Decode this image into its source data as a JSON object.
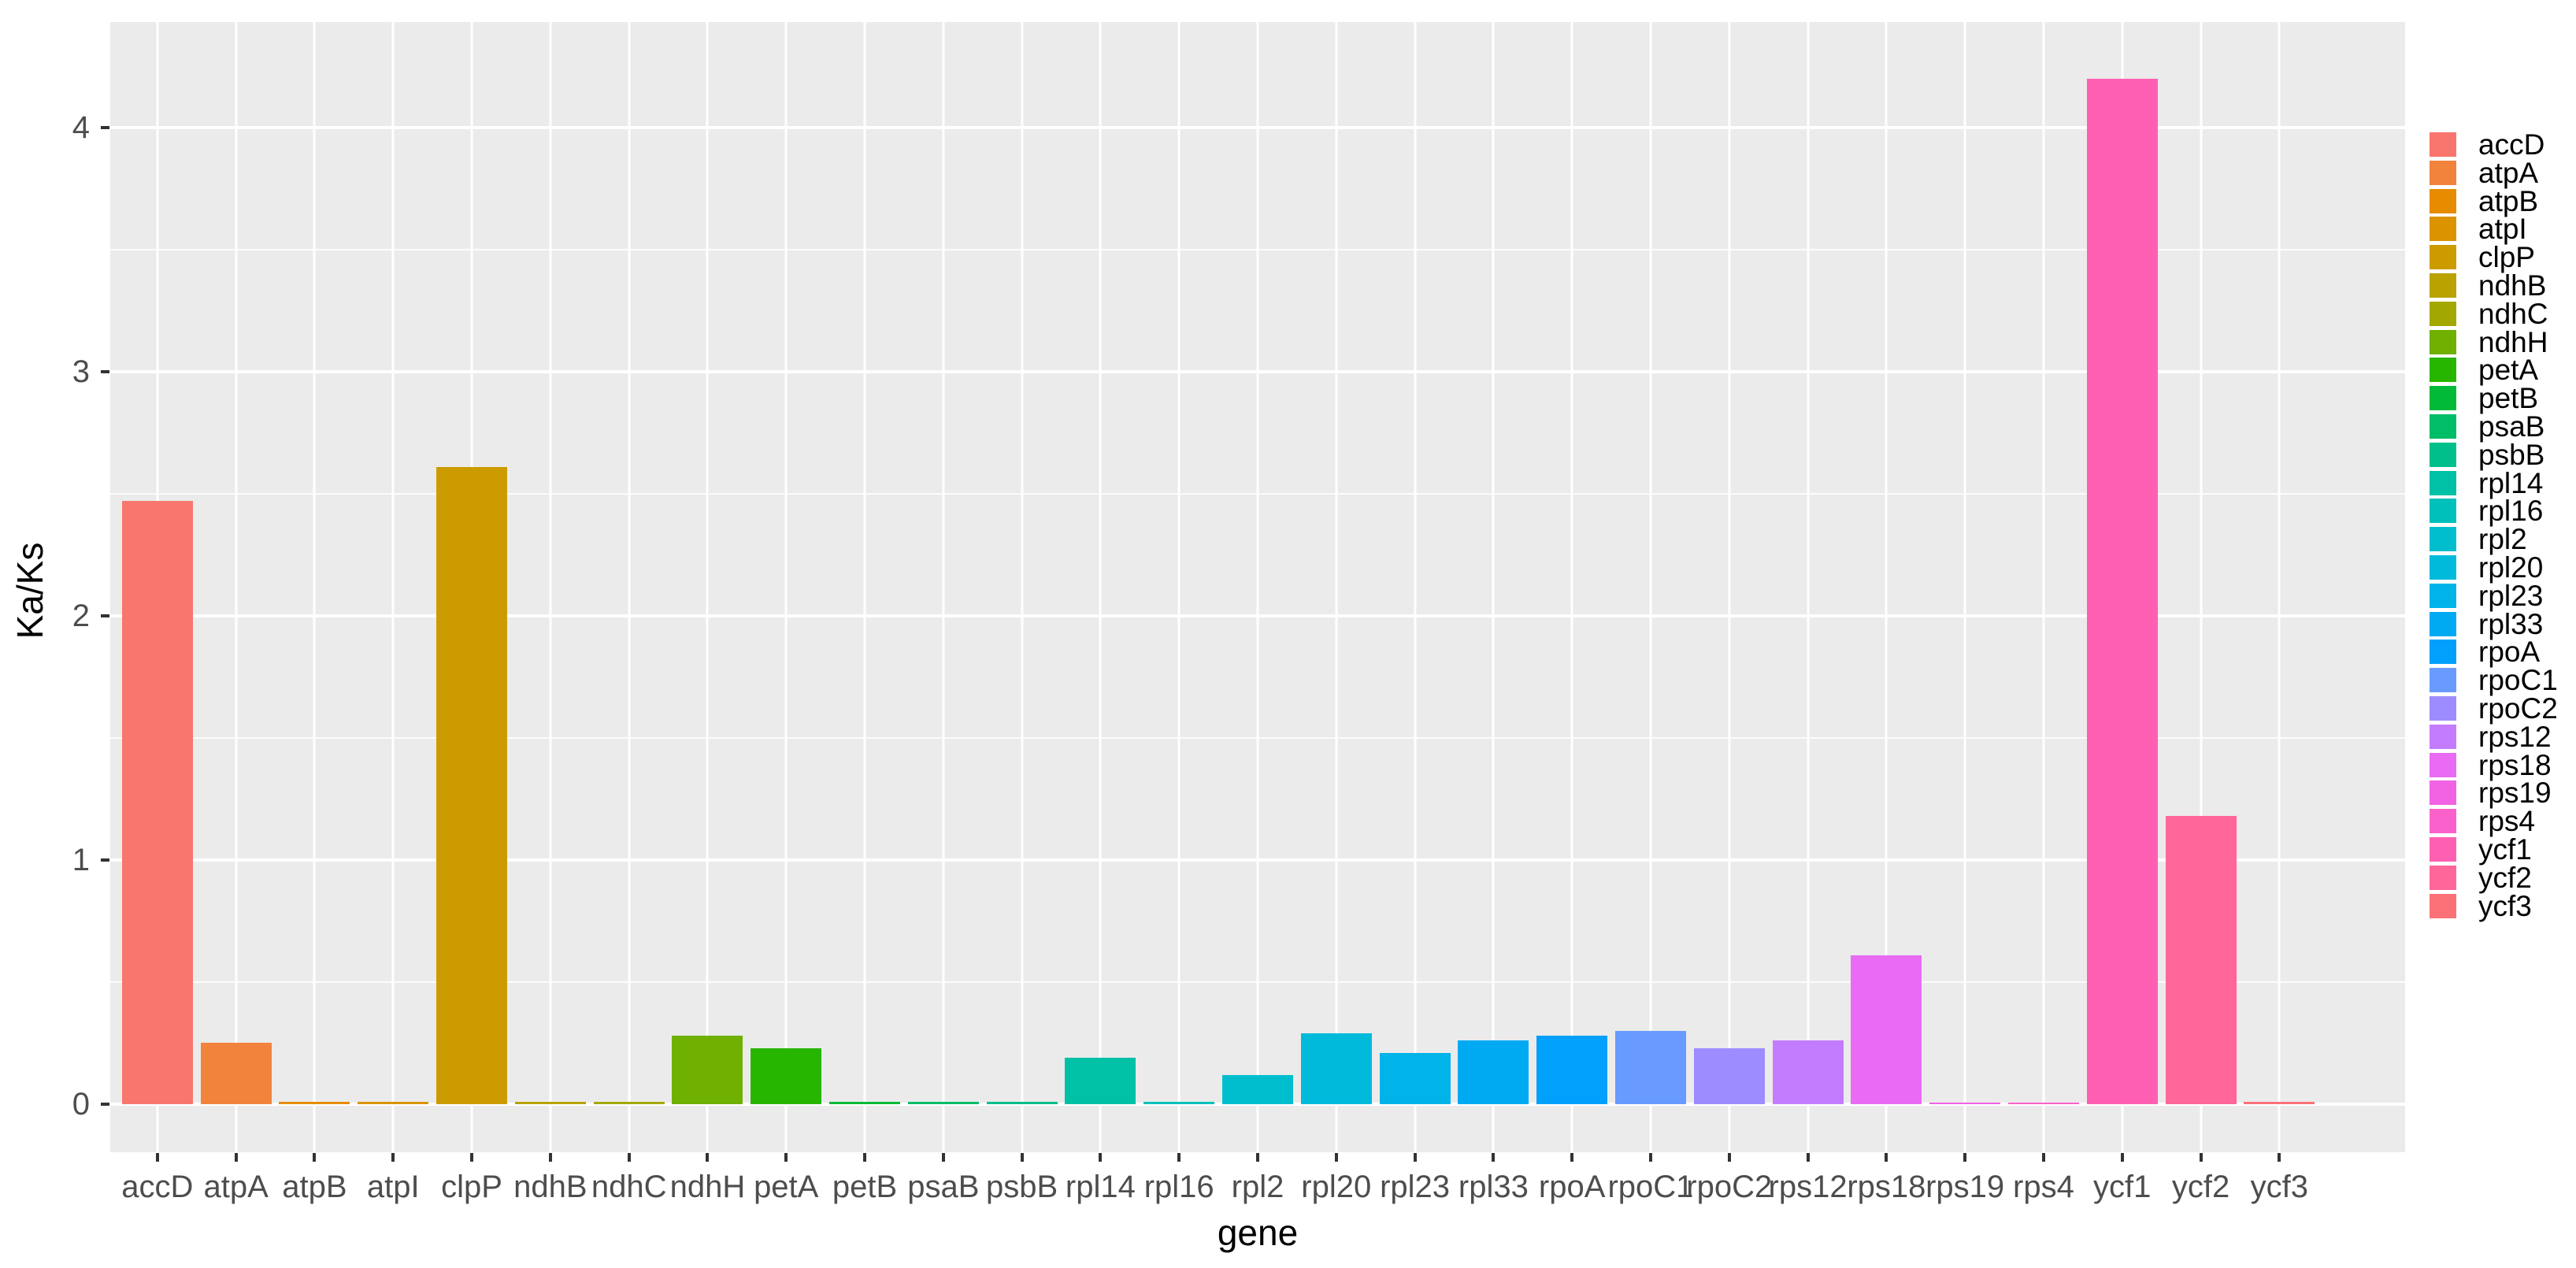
{
  "figure": {
    "y_axis_title": "Ka/Ks",
    "x_axis_title": "gene"
  },
  "chart_data": {
    "type": "bar",
    "title": "",
    "xlabel": "gene",
    "ylabel": "Ka/Ks",
    "categories": [
      "accD",
      "atpA",
      "atpB",
      "atpI",
      "clpP",
      "ndhB",
      "ndhC",
      "ndhH",
      "petA",
      "petB",
      "psaB",
      "psbB",
      "rpl14",
      "rpl16",
      "rpl2",
      "rpl20",
      "rpl23",
      "rpl33",
      "rpoA",
      "rpoC1",
      "rpoC2",
      "rps12",
      "rps18",
      "rps19",
      "rps4",
      "ycf1",
      "ycf2",
      "ycf3"
    ],
    "values": [
      2.47,
      0.25,
      0.01,
      0.01,
      2.61,
      0.01,
      0.01,
      0.28,
      0.23,
      0.01,
      0.01,
      0.01,
      0.19,
      0.01,
      0.12,
      0.29,
      0.21,
      0.26,
      0.28,
      0.3,
      0.23,
      0.26,
      0.61,
      0.005,
      0.005,
      4.2,
      1.18,
      0.01
    ],
    "colors": [
      "#F8766D",
      "#F1833D",
      "#E78C00",
      "#DB9400",
      "#CC9B00",
      "#BAA200",
      "#A3A800",
      "#6FB000",
      "#27B600",
      "#00BA38",
      "#00BD68",
      "#00BF8B",
      "#00C0A5",
      "#00C0BB",
      "#00BECE",
      "#00BADC",
      "#00B3E9",
      "#00AAF2",
      "#00A0FC",
      "#699AFF",
      "#9D8CFF",
      "#C47CFF",
      "#E96BF3",
      "#F163E2",
      "#FB61CB",
      "#FF5FB2",
      "#FF6699",
      "#FC7178"
    ],
    "legend_entries": [
      "accD",
      "atpA",
      "atpB",
      "atpI",
      "clpP",
      "ndhB",
      "ndhC",
      "ndhH",
      "petA",
      "petB",
      "psaB",
      "psbB",
      "rpl14",
      "rpl16",
      "rpl2",
      "rpl20",
      "rpl23",
      "rpl33",
      "rpoA",
      "rpoC1",
      "rpoC2",
      "rps12",
      "rps18",
      "rps19",
      "rps4",
      "ycf1",
      "ycf2",
      "ycf3"
    ],
    "legend_position": "right",
    "y_tick_labels": [
      "0",
      "1",
      "2",
      "3",
      "4"
    ],
    "y_ticks": [
      0,
      1,
      2,
      3,
      4
    ],
    "y_minor_ticks": [
      0.5,
      1.5,
      2.5,
      3.5
    ],
    "ylim": [
      -0.2,
      4.42
    ],
    "grid": true,
    "panel_background": "#EBEBEB",
    "grid_color": "#FFFFFF",
    "tick_label_color": "#4D4D4D",
    "axis_title_color": "#000000"
  }
}
